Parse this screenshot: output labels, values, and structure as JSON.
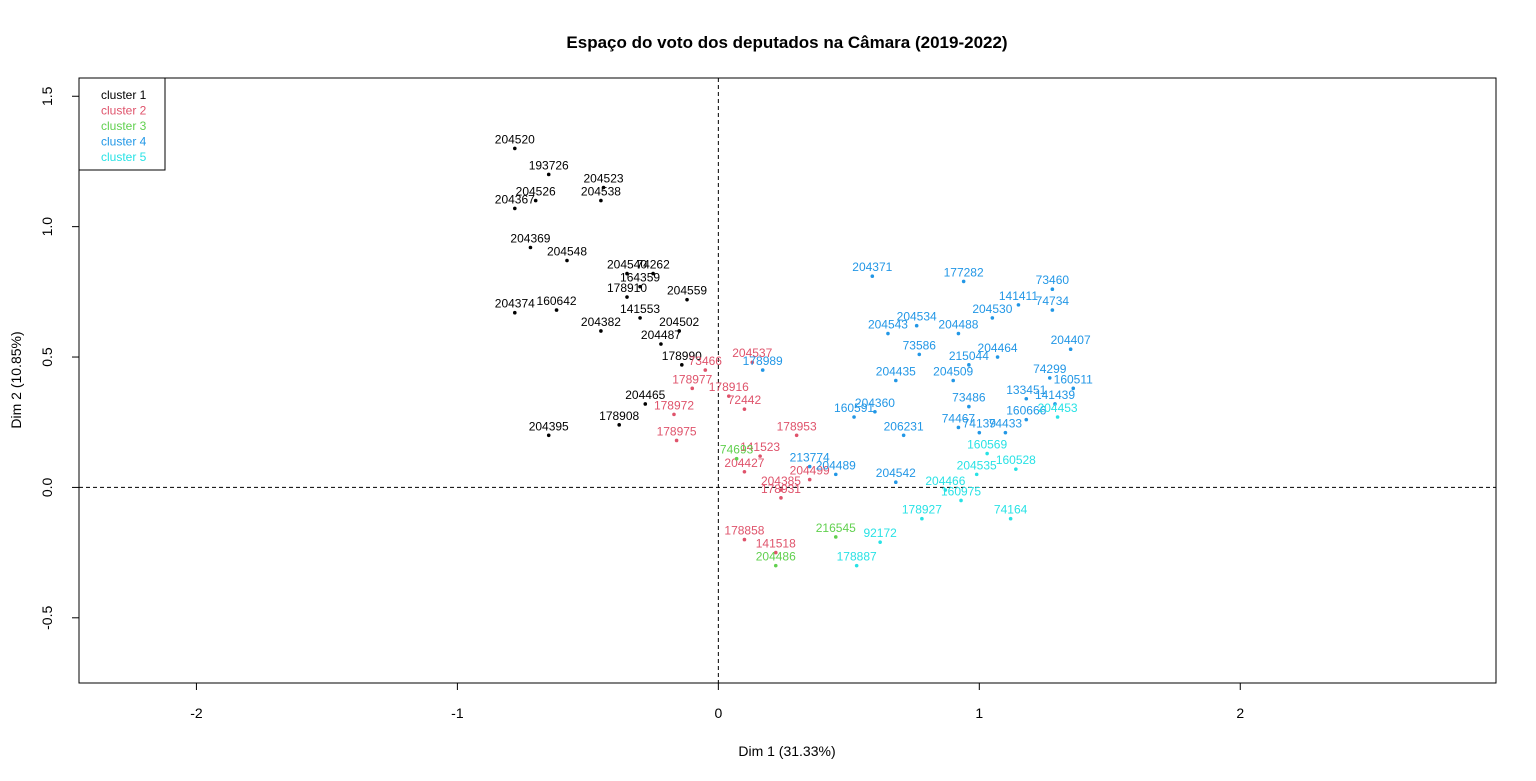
{
  "chart_data": {
    "type": "scatter",
    "title": "Espaço do voto dos deputados na Câmara (2019-2022)",
    "xlabel": "Dim 1 (31.33%)",
    "ylabel": "Dim 2 (10.85%)",
    "xlim": [
      -2.45,
      2.98
    ],
    "ylim": [
      -0.75,
      1.57
    ],
    "x_ticks": [
      -2,
      -1,
      0,
      1,
      2
    ],
    "y_ticks": [
      -0.5,
      0.0,
      0.5,
      1.0,
      1.5
    ],
    "x_tick_labels": [
      "-2",
      "-1",
      "0",
      "1",
      "2"
    ],
    "y_tick_labels": [
      "-0.5",
      "0.0",
      "0.5",
      "1.0",
      "1.5"
    ],
    "reference_lines": {
      "x": 0,
      "y": 0,
      "style": "dashed"
    },
    "legend": {
      "position": "top-left",
      "entries": [
        "cluster 1",
        "cluster 2",
        "cluster 3",
        "cluster 4",
        "cluster 5"
      ]
    },
    "colors": {
      "cluster 1": "#000000",
      "cluster 2": "#DF536B",
      "cluster 3": "#61D04F",
      "cluster 4": "#2297E6",
      "cluster 5": "#28E2E5"
    },
    "series": [
      {
        "name": "cluster 1",
        "points": [
          {
            "label": "204520",
            "x": -0.78,
            "y": 1.3
          },
          {
            "label": "193726",
            "x": -0.65,
            "y": 1.2
          },
          {
            "label": "204523",
            "x": -0.44,
            "y": 1.15
          },
          {
            "label": "204526",
            "x": -0.7,
            "y": 1.1
          },
          {
            "label": "204367",
            "x": -0.78,
            "y": 1.07
          },
          {
            "label": "204538",
            "x": -0.45,
            "y": 1.1
          },
          {
            "label": "204369",
            "x": -0.72,
            "y": 0.92
          },
          {
            "label": "204548",
            "x": -0.58,
            "y": 0.87
          },
          {
            "label": "74262",
            "x": -0.25,
            "y": 0.82
          },
          {
            "label": "204540",
            "x": -0.35,
            "y": 0.82
          },
          {
            "label": "164359",
            "x": -0.3,
            "y": 0.77
          },
          {
            "label": "204559",
            "x": -0.12,
            "y": 0.72
          },
          {
            "label": "178910",
            "x": -0.35,
            "y": 0.73
          },
          {
            "label": "141553",
            "x": -0.3,
            "y": 0.65
          },
          {
            "label": "204374",
            "x": -0.78,
            "y": 0.67
          },
          {
            "label": "160642",
            "x": -0.62,
            "y": 0.68
          },
          {
            "label": "204502",
            "x": -0.15,
            "y": 0.6
          },
          {
            "label": "204382",
            "x": -0.45,
            "y": 0.6
          },
          {
            "label": "204487",
            "x": -0.22,
            "y": 0.55
          },
          {
            "label": "178990",
            "x": -0.14,
            "y": 0.47
          },
          {
            "label": "204465",
            "x": -0.28,
            "y": 0.32
          },
          {
            "label": "178908",
            "x": -0.38,
            "y": 0.24
          },
          {
            "label": "204395",
            "x": -0.65,
            "y": 0.2
          }
        ]
      },
      {
        "name": "cluster 2",
        "points": [
          {
            "label": "73466",
            "x": -0.05,
            "y": 0.45
          },
          {
            "label": "204537",
            "x": 0.13,
            "y": 0.48
          },
          {
            "label": "178977",
            "x": -0.1,
            "y": 0.38
          },
          {
            "label": "178916",
            "x": 0.04,
            "y": 0.35
          },
          {
            "label": "72442",
            "x": 0.1,
            "y": 0.3
          },
          {
            "label": "178972",
            "x": -0.17,
            "y": 0.28
          },
          {
            "label": "178953",
            "x": 0.3,
            "y": 0.2
          },
          {
            "label": "178975",
            "x": -0.16,
            "y": 0.18
          },
          {
            "label": "141523",
            "x": 0.16,
            "y": 0.12
          },
          {
            "label": "204427",
            "x": 0.1,
            "y": 0.06
          },
          {
            "label": "204499",
            "x": 0.35,
            "y": 0.03
          },
          {
            "label": "204385",
            "x": 0.24,
            "y": -0.01
          },
          {
            "label": "178931",
            "x": 0.24,
            "y": -0.04
          },
          {
            "label": "178858",
            "x": 0.1,
            "y": -0.2
          },
          {
            "label": "141518",
            "x": 0.22,
            "y": -0.25
          }
        ]
      },
      {
        "name": "cluster 3",
        "points": [
          {
            "label": "74693",
            "x": 0.07,
            "y": 0.11
          },
          {
            "label": "216545",
            "x": 0.45,
            "y": -0.19
          },
          {
            "label": "204486",
            "x": 0.22,
            "y": -0.3
          }
        ]
      },
      {
        "name": "cluster 4",
        "points": [
          {
            "label": "204371",
            "x": 0.59,
            "y": 0.81
          },
          {
            "label": "177282",
            "x": 0.94,
            "y": 0.79
          },
          {
            "label": "73460",
            "x": 1.28,
            "y": 0.76
          },
          {
            "label": "141411",
            "x": 1.15,
            "y": 0.7
          },
          {
            "label": "74734",
            "x": 1.28,
            "y": 0.68
          },
          {
            "label": "204530",
            "x": 1.05,
            "y": 0.65
          },
          {
            "label": "204534",
            "x": 0.76,
            "y": 0.62
          },
          {
            "label": "204543",
            "x": 0.65,
            "y": 0.59
          },
          {
            "label": "204488",
            "x": 0.92,
            "y": 0.59
          },
          {
            "label": "204407",
            "x": 1.35,
            "y": 0.53
          },
          {
            "label": "73586",
            "x": 0.77,
            "y": 0.51
          },
          {
            "label": "204464",
            "x": 1.07,
            "y": 0.5
          },
          {
            "label": "215044",
            "x": 0.96,
            "y": 0.47
          },
          {
            "label": "204435",
            "x": 0.68,
            "y": 0.41
          },
          {
            "label": "204509",
            "x": 0.9,
            "y": 0.41
          },
          {
            "label": "74299",
            "x": 1.27,
            "y": 0.42
          },
          {
            "label": "160511",
            "x": 1.36,
            "y": 0.38
          },
          {
            "label": "133451",
            "x": 1.18,
            "y": 0.34
          },
          {
            "label": "204360",
            "x": 0.6,
            "y": 0.29
          },
          {
            "label": "160591",
            "x": 0.52,
            "y": 0.27
          },
          {
            "label": "73486",
            "x": 0.96,
            "y": 0.31
          },
          {
            "label": "141439",
            "x": 1.29,
            "y": 0.32
          },
          {
            "label": "160666",
            "x": 1.18,
            "y": 0.26
          },
          {
            "label": "74467",
            "x": 0.92,
            "y": 0.23
          },
          {
            "label": "74433",
            "x": 1.1,
            "y": 0.21
          },
          {
            "label": "206231",
            "x": 0.71,
            "y": 0.2
          },
          {
            "label": "74139",
            "x": 1.0,
            "y": 0.21
          },
          {
            "label": "213774",
            "x": 0.35,
            "y": 0.08
          },
          {
            "label": "204489",
            "x": 0.45,
            "y": 0.05
          },
          {
            "label": "204542",
            "x": 0.68,
            "y": 0.02
          },
          {
            "label": "178989",
            "x": 0.17,
            "y": 0.45
          }
        ]
      },
      {
        "name": "cluster 5",
        "points": [
          {
            "label": "204453",
            "x": 1.3,
            "y": 0.27
          },
          {
            "label": "160569",
            "x": 1.03,
            "y": 0.13
          },
          {
            "label": "160528",
            "x": 1.14,
            "y": 0.07
          },
          {
            "label": "204535",
            "x": 0.99,
            "y": 0.05
          },
          {
            "label": "204466",
            "x": 0.87,
            "y": -0.01
          },
          {
            "label": "160975",
            "x": 0.93,
            "y": -0.05
          },
          {
            "label": "178927",
            "x": 0.78,
            "y": -0.12
          },
          {
            "label": "92172",
            "x": 0.62,
            "y": -0.21
          },
          {
            "label": "178887",
            "x": 0.53,
            "y": -0.3
          },
          {
            "label": "74164",
            "x": 1.12,
            "y": -0.12
          }
        ]
      }
    ]
  }
}
